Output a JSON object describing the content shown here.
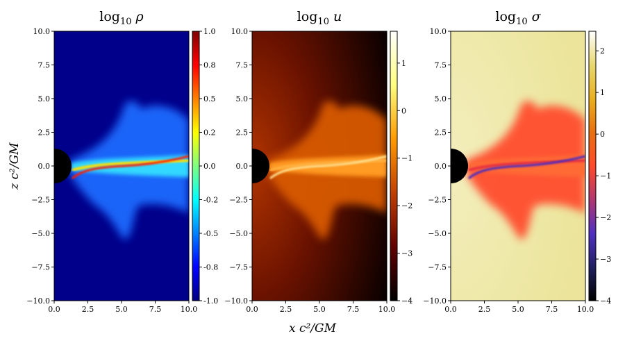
{
  "chart_data": [
    {
      "type": "heatmap",
      "title": "log10 ρ",
      "title_display": {
        "base": "log",
        "sub": "10",
        "var": "ρ"
      },
      "xlabel": "x c²/GM",
      "ylabel": "z c²/GM",
      "xlim": [
        0,
        10
      ],
      "ylim": [
        -10,
        10
      ],
      "xticks": [
        "0.0",
        "2.5",
        "5.0",
        "7.5",
        "10.0"
      ],
      "yticks": [
        "10.0",
        "7.5",
        "5.0",
        "2.5",
        "0.0",
        "−2.5",
        "−5.0",
        "−7.5",
        "−10.0"
      ],
      "colorbar": {
        "range": [
          -1.0,
          1.0
        ],
        "colormap": "jet",
        "ticks": [
          "1.0",
          "0.8",
          "0.5",
          "0.2",
          "0.0",
          "-0.2",
          "-0.5",
          "-0.8",
          "-1.0"
        ],
        "colors": [
          "#800000",
          "#ff0000",
          "#ff8000",
          "#ffff00",
          "#80ff80",
          "#00ffff",
          "#0080ff",
          "#0000ff",
          "#000080"
        ]
      }
    },
    {
      "type": "heatmap",
      "title": "log10 u",
      "title_display": {
        "base": "log",
        "sub": "10",
        "var": "u"
      },
      "xlim": [
        0,
        10
      ],
      "ylim": [
        -10,
        10
      ],
      "xticks": [
        "0.0",
        "2.5",
        "5.0",
        "7.5",
        "10.0"
      ],
      "yticks": [
        "10.0",
        "7.5",
        "5.0",
        "2.5",
        "0.0",
        "−2.5",
        "−5.0",
        "−7.5",
        "−10.0"
      ],
      "colorbar": {
        "range": [
          -4,
          1.67
        ],
        "colormap": "afmhot",
        "ticks": [
          "1",
          "0",
          "−1",
          "−2",
          "−3",
          "−4"
        ],
        "colors": [
          "#ffffff",
          "#ffff80",
          "#ff9a00",
          "#c04000",
          "#600000",
          "#000000"
        ]
      }
    },
    {
      "type": "heatmap",
      "title": "log10 σ",
      "title_display": {
        "base": "log",
        "sub": "10",
        "var": "σ"
      },
      "xlim": [
        0,
        10
      ],
      "ylim": [
        -10,
        10
      ],
      "xticks": [
        "0.0",
        "2.5",
        "5.0",
        "7.5",
        "10.0"
      ],
      "yticks": [
        "10.0",
        "7.5",
        "5.0",
        "2.5",
        "0.0",
        "−2.5",
        "−5.0",
        "−7.5",
        "−10.0"
      ],
      "colorbar": {
        "range": [
          -4,
          2.47
        ],
        "colormap": "CMRmap",
        "ticks": [
          "2",
          "1",
          "0",
          "−1",
          "−2",
          "−3",
          "−4"
        ],
        "colors": [
          "#ffffff",
          "#e8d870",
          "#e8b020",
          "#e87010",
          "#ff4a2a",
          "#b03870",
          "#5030c0",
          "#202060",
          "#000000"
        ]
      }
    }
  ],
  "figure": {
    "xlabel": "x c²/GM",
    "ylabel": "z c²/GM"
  }
}
